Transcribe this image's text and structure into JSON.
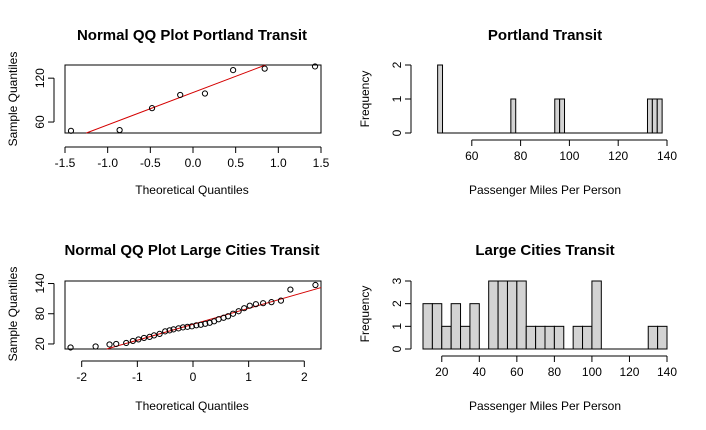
{
  "chart_data": [
    {
      "type": "scatter",
      "title": "Normal QQ Plot Portland Transit",
      "xlabel": "Theoretical Quantiles",
      "ylabel": "Sample Quantiles",
      "xlim": [
        -1.5,
        1.5
      ],
      "ylim": [
        45,
        138
      ],
      "xticks": [
        "-1.5",
        "-1.0",
        "-0.5",
        "0.0",
        "0.5",
        "1.0",
        "1.5"
      ],
      "yticks": [
        "60",
        "120"
      ],
      "points": {
        "x": [
          -1.43,
          -0.86,
          -0.48,
          -0.15,
          0.14,
          0.47,
          0.84,
          1.43
        ],
        "y": [
          48,
          49,
          79,
          97,
          99,
          131,
          133,
          136
        ]
      },
      "reference_line": {
        "x": [
          -1.25,
          0.85
        ],
        "y": [
          45,
          138
        ],
        "color": "#d40000"
      },
      "grid": false
    },
    {
      "type": "bar",
      "title": "Portland Transit",
      "xlabel": "Passenger Miles Per Person",
      "ylabel": "Frequency",
      "xlim": [
        40,
        140
      ],
      "ylim": [
        0,
        2
      ],
      "xticks": [
        "60",
        "80",
        "100",
        "120",
        "140"
      ],
      "yticks": [
        "0",
        "1",
        "2"
      ],
      "bin_width": 2,
      "bins": [
        {
          "start": 46,
          "count": 2
        },
        {
          "start": 48,
          "count": 0
        },
        {
          "start": 50,
          "count": 0
        },
        {
          "start": 52,
          "count": 0
        },
        {
          "start": 54,
          "count": 0
        },
        {
          "start": 56,
          "count": 0
        },
        {
          "start": 58,
          "count": 0
        },
        {
          "start": 60,
          "count": 0
        },
        {
          "start": 62,
          "count": 0
        },
        {
          "start": 64,
          "count": 0
        },
        {
          "start": 66,
          "count": 0
        },
        {
          "start": 68,
          "count": 0
        },
        {
          "start": 70,
          "count": 0
        },
        {
          "start": 72,
          "count": 0
        },
        {
          "start": 74,
          "count": 0
        },
        {
          "start": 76,
          "count": 1
        },
        {
          "start": 78,
          "count": 0
        },
        {
          "start": 80,
          "count": 0
        },
        {
          "start": 82,
          "count": 0
        },
        {
          "start": 84,
          "count": 0
        },
        {
          "start": 86,
          "count": 0
        },
        {
          "start": 88,
          "count": 0
        },
        {
          "start": 90,
          "count": 0
        },
        {
          "start": 92,
          "count": 0
        },
        {
          "start": 94,
          "count": 1
        },
        {
          "start": 96,
          "count": 1
        },
        {
          "start": 98,
          "count": 0
        },
        {
          "start": 100,
          "count": 0
        },
        {
          "start": 102,
          "count": 0
        },
        {
          "start": 104,
          "count": 0
        },
        {
          "start": 106,
          "count": 0
        },
        {
          "start": 108,
          "count": 0
        },
        {
          "start": 110,
          "count": 0
        },
        {
          "start": 112,
          "count": 0
        },
        {
          "start": 114,
          "count": 0
        },
        {
          "start": 116,
          "count": 0
        },
        {
          "start": 118,
          "count": 0
        },
        {
          "start": 120,
          "count": 0
        },
        {
          "start": 122,
          "count": 0
        },
        {
          "start": 124,
          "count": 0
        },
        {
          "start": 126,
          "count": 0
        },
        {
          "start": 128,
          "count": 0
        },
        {
          "start": 130,
          "count": 0
        },
        {
          "start": 132,
          "count": 1
        },
        {
          "start": 134,
          "count": 1
        },
        {
          "start": 136,
          "count": 1
        }
      ],
      "bar_color": "#d3d3d3",
      "grid": false
    },
    {
      "type": "scatter",
      "title": "Normal QQ Plot Large Cities Transit",
      "xlabel": "Theoretical Quantiles",
      "ylabel": "Sample Quantiles",
      "xlim": [
        -2.3,
        2.3
      ],
      "ylim": [
        10,
        145
      ],
      "xticks": [
        "-2",
        "-1",
        "0",
        "1",
        "2"
      ],
      "yticks": [
        "20",
        "80",
        "140"
      ],
      "points": {
        "x": [
          -2.2,
          -1.75,
          -1.5,
          -1.38,
          -1.2,
          -1.08,
          -0.98,
          -0.88,
          -0.78,
          -0.7,
          -0.6,
          -0.5,
          -0.42,
          -0.35,
          -0.26,
          -0.18,
          -0.1,
          -0.02,
          0.06,
          0.14,
          0.22,
          0.3,
          0.38,
          0.46,
          0.55,
          0.63,
          0.72,
          0.82,
          0.92,
          1.02,
          1.13,
          1.26,
          1.41,
          1.58,
          1.75,
          2.2
        ],
        "y": [
          13,
          15,
          19,
          20,
          22,
          26,
          29,
          32,
          34,
          37,
          40,
          45,
          47,
          49,
          51,
          53,
          54,
          55,
          57,
          58,
          60,
          62,
          65,
          69,
          72,
          75,
          80,
          85,
          91,
          96,
          99,
          101,
          103,
          106,
          128,
          137
        ]
      },
      "reference_line": {
        "x": [
          -1.55,
          2.3
        ],
        "y": [
          10,
          132
        ],
        "color": "#d40000"
      },
      "grid": false
    },
    {
      "type": "bar",
      "title": "Large Cities Transit",
      "xlabel": "Passenger Miles Per Person",
      "ylabel": "Frequency",
      "xlim": [
        10,
        140
      ],
      "ylim": [
        0,
        3
      ],
      "xticks": [
        "20",
        "40",
        "60",
        "80",
        "100",
        "120",
        "140"
      ],
      "yticks": [
        "0",
        "1",
        "2",
        "3"
      ],
      "bin_width": 5,
      "bins": [
        {
          "start": 10,
          "count": 2
        },
        {
          "start": 15,
          "count": 2
        },
        {
          "start": 20,
          "count": 1
        },
        {
          "start": 25,
          "count": 2
        },
        {
          "start": 30,
          "count": 1
        },
        {
          "start": 35,
          "count": 2
        },
        {
          "start": 40,
          "count": 0
        },
        {
          "start": 45,
          "count": 3
        },
        {
          "start": 50,
          "count": 3
        },
        {
          "start": 55,
          "count": 3
        },
        {
          "start": 60,
          "count": 3
        },
        {
          "start": 65,
          "count": 1
        },
        {
          "start": 70,
          "count": 1
        },
        {
          "start": 75,
          "count": 1
        },
        {
          "start": 80,
          "count": 1
        },
        {
          "start": 85,
          "count": 0
        },
        {
          "start": 90,
          "count": 1
        },
        {
          "start": 95,
          "count": 1
        },
        {
          "start": 100,
          "count": 3
        },
        {
          "start": 105,
          "count": 0
        },
        {
          "start": 110,
          "count": 0
        },
        {
          "start": 115,
          "count": 0
        },
        {
          "start": 120,
          "count": 0
        },
        {
          "start": 125,
          "count": 0
        },
        {
          "start": 130,
          "count": 1
        },
        {
          "start": 135,
          "count": 1
        }
      ],
      "bar_color": "#d3d3d3",
      "grid": false
    }
  ]
}
